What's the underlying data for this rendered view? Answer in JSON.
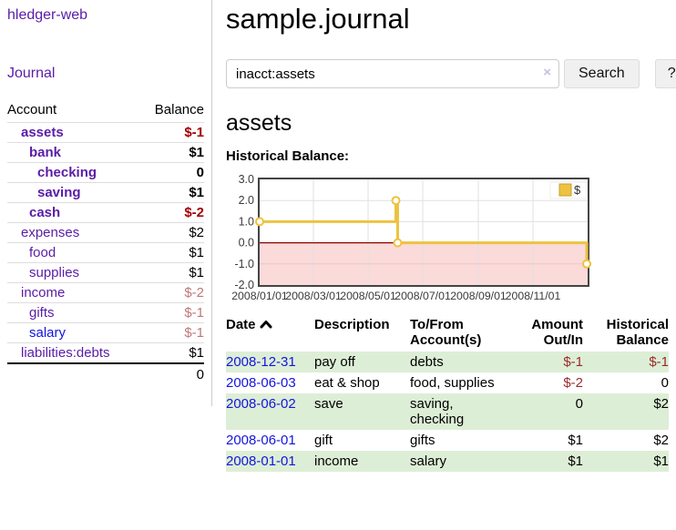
{
  "app": {
    "title": "hledger-web",
    "nav": {
      "journal": "Journal"
    }
  },
  "colors": {
    "accent_purple": "#5a1ca8",
    "link_blue": "#1414e0",
    "negative_strong": "#a40000",
    "negative_dim": "#c07878",
    "negative_cell": "#9a2a2a",
    "row_stripe_green": "#ddeed6",
    "chart_gold": "#edc240"
  },
  "sidebar": {
    "table": {
      "headers": {
        "account": "Account",
        "balance": "Balance"
      },
      "rows": [
        {
          "name": "assets",
          "depth": 1,
          "strong": true,
          "balance": "$-1",
          "neg": "strong",
          "link_color": "purple"
        },
        {
          "name": "bank",
          "depth": 2,
          "strong": true,
          "balance": "$1",
          "neg": "none",
          "link_color": "purple"
        },
        {
          "name": "checking",
          "depth": 3,
          "strong": true,
          "balance": "0",
          "neg": "none",
          "link_color": "purple"
        },
        {
          "name": "saving",
          "depth": 3,
          "strong": true,
          "balance": "$1",
          "neg": "none",
          "link_color": "purple"
        },
        {
          "name": "cash",
          "depth": 2,
          "strong": true,
          "balance": "$-2",
          "neg": "strong",
          "link_color": "purple"
        },
        {
          "name": "expenses",
          "depth": 1,
          "strong": false,
          "balance": "$2",
          "neg": "none",
          "link_color": "purple"
        },
        {
          "name": "food",
          "depth": 2,
          "strong": false,
          "balance": "$1",
          "neg": "none",
          "link_color": "purple"
        },
        {
          "name": "supplies",
          "depth": 2,
          "strong": false,
          "balance": "$1",
          "neg": "none",
          "link_color": "purple"
        },
        {
          "name": "income",
          "depth": 1,
          "strong": false,
          "balance": "$-2",
          "neg": "dim",
          "link_color": "purple"
        },
        {
          "name": "gifts",
          "depth": 2,
          "strong": false,
          "balance": "$-1",
          "neg": "dim",
          "link_color": "purple"
        },
        {
          "name": "salary",
          "depth": 2,
          "strong": false,
          "balance": "$-1",
          "neg": "dim",
          "link_color": "blue"
        },
        {
          "name": "liabilities:debts",
          "depth": 1,
          "strong": false,
          "balance": "$1",
          "neg": "none",
          "link_color": "purple"
        }
      ],
      "total": "0"
    }
  },
  "main": {
    "title": "sample.journal",
    "search": {
      "value": "inacct:assets",
      "clear_icon": "×",
      "button": "Search",
      "help_button": "?"
    },
    "account_heading": "assets",
    "chart_label": "Historical Balance:"
  },
  "chart_data": {
    "type": "line",
    "step": true,
    "title": "Historical Balance:",
    "series": [
      {
        "name": "$",
        "color": "#edc240",
        "points": [
          {
            "date": "2008-01-01",
            "value": 1
          },
          {
            "date": "2008-06-01",
            "value": 2
          },
          {
            "date": "2008-06-03",
            "value": 0
          },
          {
            "date": "2008-12-31",
            "value": -1
          }
        ]
      }
    ],
    "x_range": [
      "2008-01-01",
      "2009-01-01"
    ],
    "x_tick_labels": [
      "2008/01/01",
      "2008/03/01",
      "2008/05/01",
      "2008/07/01",
      "2008/09/01",
      "2008/11/01"
    ],
    "y_ticks": [
      3.0,
      2.0,
      1.0,
      0.0,
      -1.0,
      -2.0
    ],
    "ylim": [
      -2,
      3
    ],
    "grid": true,
    "negative_region_color": "#fbdada",
    "negative_grid_color": "#eec6c6",
    "grid_color": "#e0e0e0",
    "zero_line_color": "#8b0000",
    "border_color": "#444444",
    "legend": {
      "label": "$",
      "position": "top-right"
    }
  },
  "register": {
    "headers": {
      "date": "Date",
      "sort_icon": "chevron-up",
      "description": "Description",
      "accounts": "To/From\nAccount(s)",
      "amount": "Amount\nOut/In",
      "balance": "Historical\nBalance"
    },
    "rows": [
      {
        "date": "2008-12-31",
        "description": "pay off",
        "accounts": "debts",
        "amount": {
          "text": "$-1",
          "negative": true
        },
        "balance": {
          "text": "$-1",
          "negative": true
        }
      },
      {
        "date": "2008-06-03",
        "description": "eat & shop",
        "accounts": "food, supplies",
        "amount": {
          "text": "$-2",
          "negative": true
        },
        "balance": {
          "text": "0",
          "negative": false
        }
      },
      {
        "date": "2008-06-02",
        "description": "save",
        "accounts": "saving, checking",
        "amount": {
          "text": "0",
          "negative": false
        },
        "balance": {
          "text": "$2",
          "negative": false
        }
      },
      {
        "date": "2008-06-01",
        "description": "gift",
        "accounts": "gifts",
        "amount": {
          "text": "$1",
          "negative": false
        },
        "balance": {
          "text": "$2",
          "negative": false
        }
      },
      {
        "date": "2008-01-01",
        "description": "income",
        "accounts": "salary",
        "amount": {
          "text": "$1",
          "negative": false
        },
        "balance": {
          "text": "$1",
          "negative": false
        }
      }
    ]
  }
}
